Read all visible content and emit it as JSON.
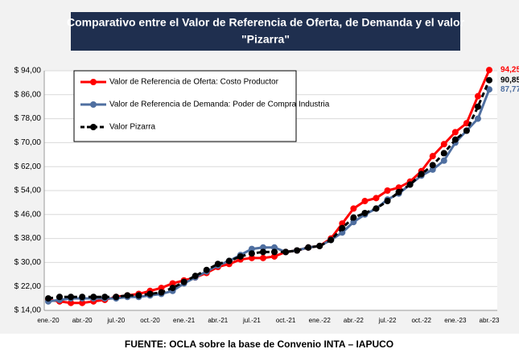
{
  "chart_data": {
    "type": "line",
    "title": [
      "Comparativo entre el Valor de Referencia de Oferta, de Demanda y el valor",
      "\"Pizarra\""
    ],
    "source": "FUENTE: OCLA sobre la base de Convenio INTA – IAPUCO",
    "categories": [
      "ene.-20",
      null,
      null,
      "abr.-20",
      null,
      null,
      "jul.-20",
      null,
      null,
      "oct.-20",
      null,
      null,
      "ene.-21",
      null,
      null,
      "abr.-21",
      null,
      null,
      "jul.-21",
      null,
      null,
      "oct.-21",
      null,
      null,
      "ene.-22",
      null,
      null,
      "abr.-22",
      null,
      null,
      "jul.-22",
      null,
      null,
      "oct.-22",
      null,
      null,
      "ene.-23",
      null,
      null,
      "abr.-23"
    ],
    "ylim": [
      14,
      94
    ],
    "yticks": [
      {
        "value": 14,
        "label": "$ 14,00"
      },
      {
        "value": 22,
        "label": "$ 22,00"
      },
      {
        "value": 30,
        "label": "$ 30,00"
      },
      {
        "value": 38,
        "label": "$ 38,00"
      },
      {
        "value": 46,
        "label": "$ 46,00"
      },
      {
        "value": 54,
        "label": "$ 54,00"
      },
      {
        "value": 62,
        "label": "$ 62,00"
      },
      {
        "value": 70,
        "label": "$ 70,00"
      },
      {
        "value": 78,
        "label": "$ 78,00"
      },
      {
        "value": 86,
        "label": "$ 86,00"
      },
      {
        "value": 94,
        "label": "$ 94,00"
      }
    ],
    "grid": true,
    "legend": "top-left",
    "series": [
      {
        "name": "Valor de Referencia de Oferta: Costo Productor",
        "color": "#ff0000",
        "dashed": false,
        "values": [
          17.5,
          17,
          16.5,
          16.5,
          17,
          17.5,
          18.5,
          19,
          19.5,
          20.5,
          21.5,
          23,
          24,
          25,
          26.5,
          28.5,
          29.5,
          31,
          31.5,
          31.5,
          32,
          33.5,
          34,
          35,
          35.5,
          38,
          43,
          48,
          50.5,
          51.5,
          54,
          55,
          57,
          60.5,
          65.5,
          69.5,
          73.5,
          76.5,
          85.5,
          94.25
        ],
        "value_labels": [
          null,
          null,
          null,
          null,
          null,
          null,
          null,
          null,
          null,
          null,
          null,
          null,
          null,
          null,
          null,
          null,
          null,
          null,
          null,
          null,
          null,
          null,
          null,
          null,
          null,
          null,
          null,
          null,
          null,
          null,
          null,
          null,
          null,
          null,
          null,
          null,
          null,
          null,
          null,
          "94,25"
        ]
      },
      {
        "name": "Valor de Referencia de Demanda: Poder de Compra Industria",
        "color": "#4f6fa0",
        "dashed": false,
        "values": [
          17,
          17.5,
          18,
          18,
          18,
          18,
          18,
          18.5,
          18.5,
          19,
          19.5,
          20.5,
          23,
          25,
          27,
          29,
          30.5,
          32.5,
          34.5,
          35,
          35,
          33.5,
          34,
          35,
          35.5,
          37.5,
          40,
          43.5,
          46,
          48,
          51,
          53,
          56,
          59,
          61,
          64,
          70,
          74,
          78,
          87.77
        ],
        "value_labels": [
          null,
          null,
          null,
          null,
          null,
          null,
          null,
          null,
          null,
          null,
          null,
          null,
          null,
          null,
          null,
          null,
          null,
          null,
          null,
          null,
          null,
          null,
          null,
          null,
          null,
          null,
          null,
          null,
          null,
          null,
          null,
          null,
          null,
          null,
          null,
          null,
          null,
          null,
          null,
          "87,77"
        ]
      },
      {
        "name": "Valor Pizarra",
        "color": "#000000",
        "dashed": true,
        "values": [
          18,
          18.5,
          18.5,
          18.5,
          18.5,
          18.5,
          18.5,
          19,
          19,
          19.5,
          20,
          21.5,
          23.5,
          25.5,
          27.5,
          29.5,
          30.5,
          32,
          33,
          33.5,
          33.5,
          33.5,
          34,
          35,
          35.5,
          37.5,
          41.5,
          45,
          46.5,
          48,
          50.5,
          53.5,
          56,
          59.5,
          62.5,
          66.5,
          71,
          74,
          82,
          90.85
        ],
        "value_labels": [
          null,
          null,
          null,
          null,
          null,
          null,
          null,
          null,
          null,
          null,
          null,
          null,
          null,
          null,
          null,
          null,
          null,
          null,
          null,
          null,
          null,
          null,
          null,
          null,
          null,
          null,
          null,
          null,
          null,
          null,
          null,
          null,
          null,
          null,
          null,
          null,
          null,
          null,
          null,
          "90,85"
        ]
      }
    ]
  }
}
